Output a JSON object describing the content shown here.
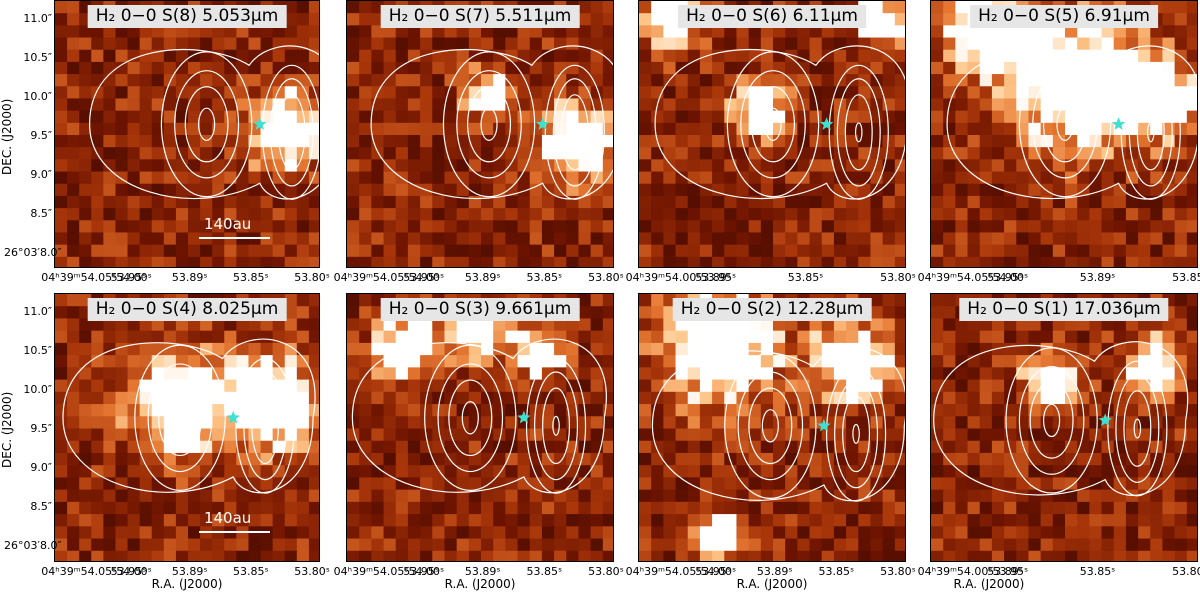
{
  "panels": [
    {
      "title": "H₂ 0−0 S(8) 5.053μm",
      "line": "S(8)",
      "wavelength_um": 5.053,
      "scalebar": "140au"
    },
    {
      "title": "H₂ 0−0 S(7) 5.511μm",
      "line": "S(7)",
      "wavelength_um": 5.511
    },
    {
      "title": "H₂ 0−0 S(6) 6.11μm",
      "line": "S(6)",
      "wavelength_um": 6.11
    },
    {
      "title": "H₂ 0−0 S(5) 6.91μm",
      "line": "S(5)",
      "wavelength_um": 6.91
    },
    {
      "title": "H₂ 0−0 S(4) 8.025μm",
      "line": "S(4)",
      "wavelength_um": 8.025,
      "scalebar": "140au"
    },
    {
      "title": "H₂ 0−0 S(3) 9.661μm",
      "line": "S(3)",
      "wavelength_um": 9.661
    },
    {
      "title": "H₂ 0−0 S(2) 12.28μm",
      "line": "S(2)",
      "wavelength_um": 12.28
    },
    {
      "title": "H₂ 0−0 S(1) 17.036μm",
      "line": "S(1)",
      "wavelength_um": 17.036
    }
  ],
  "axes": {
    "ylabel": "DEC. (J2000)",
    "xlabel": "R.A. (J2000)",
    "yticks": [
      "11.0″",
      "10.5″",
      "10.0″",
      "9.5″",
      "9.0″",
      "8.5″",
      "26°03′8.0″"
    ],
    "xticks_full": [
      "04ʰ39ᵐ54.05ˢ54.00ˢ",
      "53.95ˢ",
      "53.89ˢ",
      "53.85ˢ",
      "53.80ˢ"
    ],
    "xticks_p3": [
      "04ʰ39ᵐ54.00ˢ53.95ˢ",
      "53.89ˢ",
      "53.85ˢ",
      "53.80ˢ"
    ],
    "xticks_p4": [
      "04ʰ39ᵐ54.05ˢ54.00ˢ",
      "53.95ˢ",
      "53.89ˢ",
      "53.85ˢ"
    ],
    "xticks_p8": [
      "04ʰ39ᵐ54.00ˢ53.95ˢ",
      "53.89ˢ",
      "53.85ˢ",
      "53.80ˢ"
    ]
  },
  "colors": {
    "background_low": "#1a0000",
    "mid": "#8b2500",
    "high": "#ff9a3c",
    "saturated": "#ffffff",
    "contour": "#ffffff",
    "star": "#40e0d0"
  },
  "marker": "star"
}
